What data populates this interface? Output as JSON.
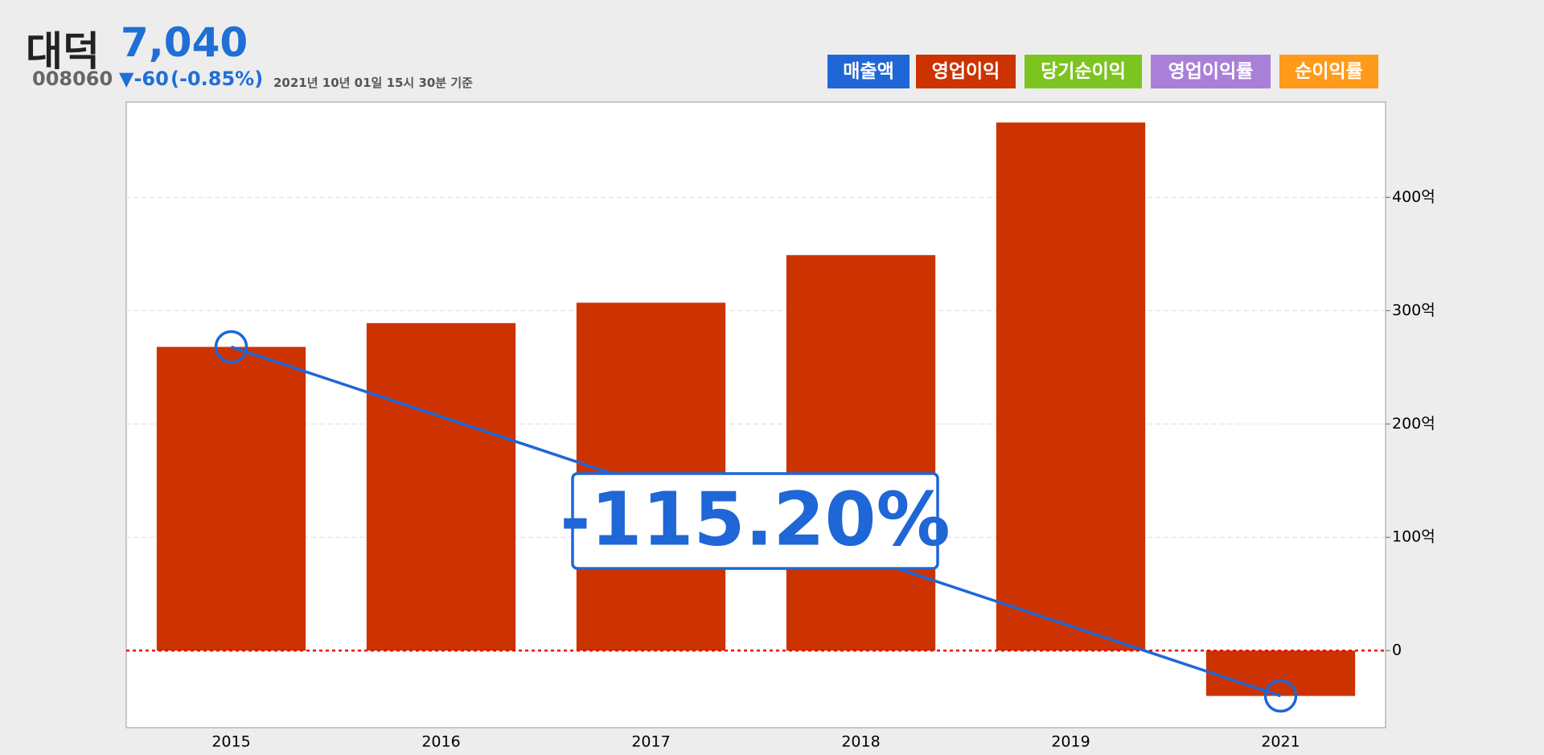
{
  "header": {
    "name": "대덕",
    "price": "7,040",
    "code": "008060",
    "change": "▼-60",
    "change_pct": "(-0.85%)",
    "timestamp": "2021년 10년 01일 15시 30분 기준"
  },
  "legend_buttons": [
    "매출액",
    "영업이익",
    "당기순이익",
    "영업이익률",
    "순이익률"
  ],
  "chart_data": {
    "type": "bar",
    "categories": [
      "2015",
      "2016",
      "2017",
      "2018",
      "2019",
      "2021"
    ],
    "series": [
      {
        "name": "영업이익",
        "color": "#cc3300",
        "values": [
          268,
          289,
          307,
          349,
          466,
          -40
        ]
      }
    ],
    "ylim": [
      -68,
      484
    ],
    "yticks": [
      0,
      {
        "value": 100,
        "label": "100억"
      },
      {
        "value": 200,
        "label": "200억"
      },
      {
        "value": 300,
        "label": "300억"
      },
      {
        "value": 400,
        "label": "400억"
      }
    ],
    "grid": true,
    "annotation": "-115.20%"
  }
}
